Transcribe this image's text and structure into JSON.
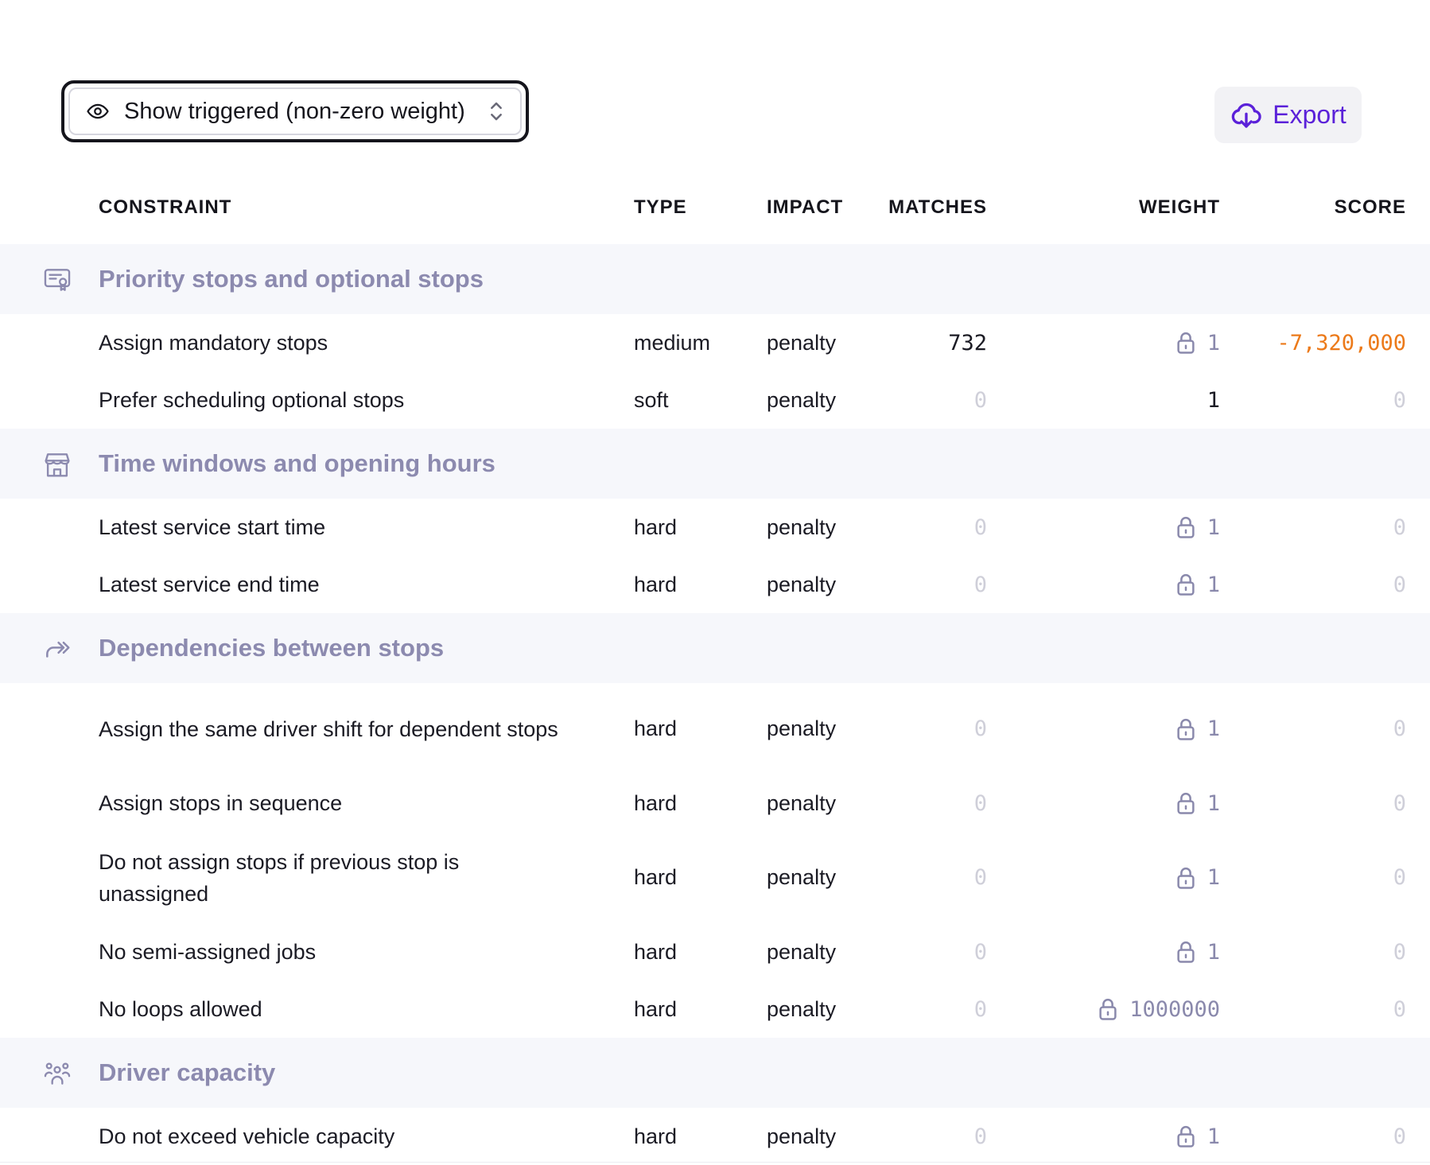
{
  "toolbar": {
    "filter": {
      "icon": "eye-icon",
      "label": "Show triggered (non-zero weight)"
    },
    "export": {
      "icon": "cloud-download-icon",
      "label": "Export"
    }
  },
  "columns": {
    "constraint": "CONSTRAINT",
    "type": "TYPE",
    "impact": "IMPACT",
    "matches": "MATCHES",
    "weight": "WEIGHT",
    "score": "SCORE"
  },
  "colors": {
    "accent": "#5b21d9",
    "negative": "#ec7a1a",
    "group_title": "#8c8aaf"
  },
  "groups": [
    {
      "title": "Priority stops and optional stops",
      "icon": "certificate-icon",
      "rows": [
        {
          "name": "Assign mandatory stops",
          "type": "medium",
          "impact": "penalty",
          "matches": "732",
          "weight": "1",
          "locked": true,
          "score": "-7,320,000"
        },
        {
          "name": "Prefer scheduling optional stops",
          "type": "soft",
          "impact": "penalty",
          "matches": "0",
          "weight": "1",
          "locked": false,
          "score": "0"
        }
      ]
    },
    {
      "title": "Time windows and opening hours",
      "icon": "storefront-icon",
      "rows": [
        {
          "name": "Latest service start time",
          "type": "hard",
          "impact": "penalty",
          "matches": "0",
          "weight": "1",
          "locked": true,
          "score": "0"
        },
        {
          "name": "Latest service end time",
          "type": "hard",
          "impact": "penalty",
          "matches": "0",
          "weight": "1",
          "locked": true,
          "score": "0"
        }
      ]
    },
    {
      "title": "Dependencies between stops",
      "icon": "forward-arrows-icon",
      "rows": [
        {
          "name": "Assign the same driver shift for dependent stops",
          "type": "hard",
          "impact": "penalty",
          "matches": "0",
          "weight": "1",
          "locked": true,
          "score": "0"
        },
        {
          "name": "Assign stops in sequence",
          "type": "hard",
          "impact": "penalty",
          "matches": "0",
          "weight": "1",
          "locked": true,
          "score": "0"
        },
        {
          "name": "Do not assign stops if previous stop is unassigned",
          "type": "hard",
          "impact": "penalty",
          "matches": "0",
          "weight": "1",
          "locked": true,
          "score": "0"
        },
        {
          "name": "No semi-assigned jobs",
          "type": "hard",
          "impact": "penalty",
          "matches": "0",
          "weight": "1",
          "locked": true,
          "score": "0"
        },
        {
          "name": "No loops allowed",
          "type": "hard",
          "impact": "penalty",
          "matches": "0",
          "weight": "1000000",
          "locked": true,
          "score": "0"
        }
      ]
    },
    {
      "title": "Driver capacity",
      "icon": "users-group-icon",
      "rows": [
        {
          "name": "Do not exceed vehicle capacity",
          "type": "hard",
          "impact": "penalty",
          "matches": "0",
          "weight": "1",
          "locked": true,
          "score": "0"
        }
      ]
    }
  ]
}
